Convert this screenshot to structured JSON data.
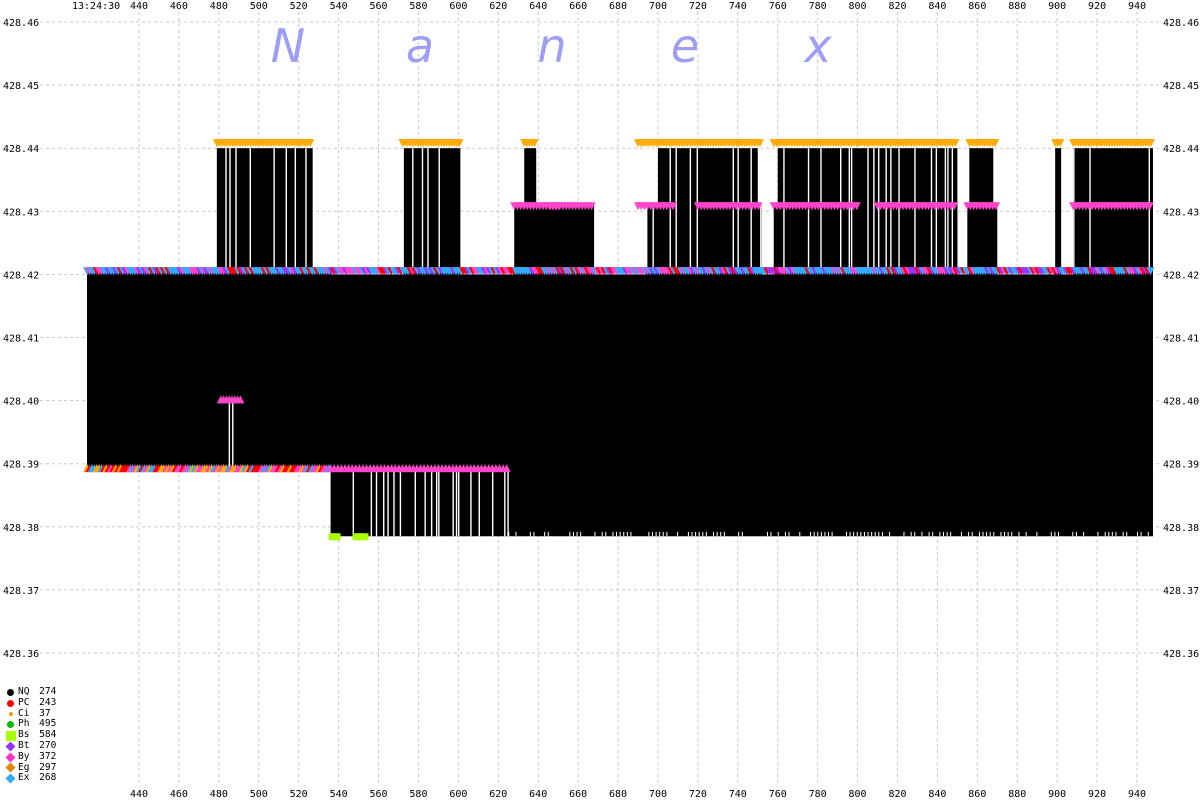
{
  "chart_data": {
    "type": "scatter",
    "timestamp": "13:24:30",
    "watermark": "Nanex",
    "x_ticks": [
      440,
      460,
      480,
      500,
      520,
      540,
      560,
      580,
      600,
      620,
      640,
      660,
      680,
      700,
      720,
      740,
      760,
      780,
      800,
      820,
      840,
      860,
      880,
      900,
      920,
      940
    ],
    "y_ticks": [
      "428.46",
      "428.45",
      "428.44",
      "428.43",
      "428.42",
      "428.41",
      "428.40",
      "428.39",
      "428.38",
      "428.37",
      "428.36"
    ],
    "ylim": [
      428.355,
      428.465
    ],
    "xlim": [
      407,
      950
    ],
    "grid": true,
    "bid_ask_bands": [
      {
        "x_start": 414,
        "x_end": 948,
        "low": 428.389,
        "high": 428.42
      },
      {
        "x_start": 536,
        "x_end": 948,
        "low": 428.3785,
        "high": 428.389
      },
      {
        "x_start": 479,
        "x_end": 527,
        "low": 428.42,
        "high": 428.44
      },
      {
        "x_start": 572,
        "x_end": 601,
        "low": 428.42,
        "high": 428.44
      },
      {
        "x_start": 628,
        "x_end": 652,
        "low": 428.42,
        "high": 428.431
      },
      {
        "x_start": 633,
        "x_end": 639,
        "low": 428.42,
        "high": 428.44
      },
      {
        "x_start": 646,
        "x_end": 668,
        "low": 428.42,
        "high": 428.431
      },
      {
        "x_start": 694,
        "x_end": 752,
        "low": 428.42,
        "high": 428.431
      },
      {
        "x_start": 700,
        "x_end": 750,
        "low": 428.42,
        "high": 428.44
      },
      {
        "x_start": 758,
        "x_end": 850,
        "low": 428.42,
        "high": 428.431
      },
      {
        "x_start": 760,
        "x_end": 850,
        "low": 428.42,
        "high": 428.44
      },
      {
        "x_start": 855,
        "x_end": 870,
        "low": 428.42,
        "high": 428.431
      },
      {
        "x_start": 856,
        "x_end": 868,
        "low": 428.42,
        "high": 428.44
      },
      {
        "x_start": 899,
        "x_end": 902,
        "low": 428.42,
        "high": 428.44
      },
      {
        "x_start": 908,
        "x_end": 948,
        "low": 428.42,
        "high": 428.44
      },
      {
        "x_start": 908,
        "x_end": 948,
        "low": 428.42,
        "high": 428.431
      }
    ],
    "legend": [
      {
        "code": "NQ",
        "count": "274",
        "color": "#000000",
        "shape": "round"
      },
      {
        "code": "PC",
        "count": "243",
        "color": "#ff0000",
        "shape": "round"
      },
      {
        "code": "Ci",
        "count": "37",
        "color": "#ff9900",
        "shape": "dot"
      },
      {
        "code": "Ph",
        "count": "495",
        "color": "#00bb00",
        "shape": "round"
      },
      {
        "code": "Bs",
        "count": "584",
        "color": "#aaff00",
        "shape": "square"
      },
      {
        "code": "Bt",
        "count": "270",
        "color": "#9933ff",
        "shape": "diamond"
      },
      {
        "code": "By",
        "count": "372",
        "color": "#ff33cc",
        "shape": "diamond"
      },
      {
        "code": "Eg",
        "count": "297",
        "color": "#dd8800",
        "shape": "diamond"
      },
      {
        "code": "Ex",
        "count": "268",
        "color": "#33aaff",
        "shape": "diamond"
      }
    ],
    "marker_colors": {
      "ask_orange": "#ffaa00",
      "ask_pink": "#ff44cc",
      "mid_blue": "#33aaff",
      "mid_purple": "#9933ff",
      "mid_red": "#ff0000",
      "bid_green": "#aaff00"
    }
  }
}
